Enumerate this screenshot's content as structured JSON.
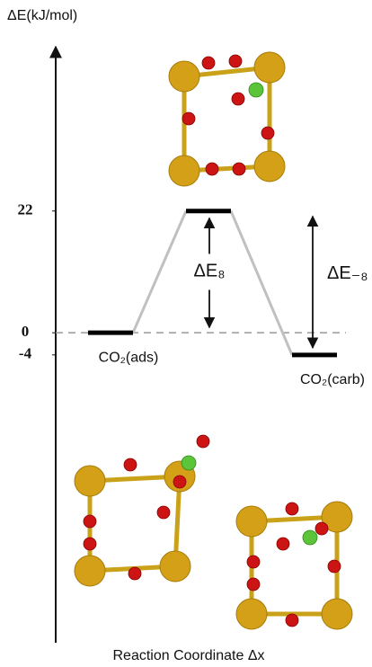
{
  "chart_data": {
    "type": "energy-profile",
    "y_label": "ΔE(kJ/mol)",
    "x_label": "Reaction Coordinate Δx",
    "categories": [
      "CO₂(ads)",
      null,
      "CO₂(carb)"
    ],
    "values": [
      0,
      22,
      -4
    ],
    "ylim": [
      -56,
      52
    ],
    "yticks": [
      22,
      0,
      -4
    ],
    "level_color": "#000000",
    "connector_color": "#c0c0c0",
    "annotations": [
      "ΔE₈",
      "ΔE₋₈"
    ]
  }
}
